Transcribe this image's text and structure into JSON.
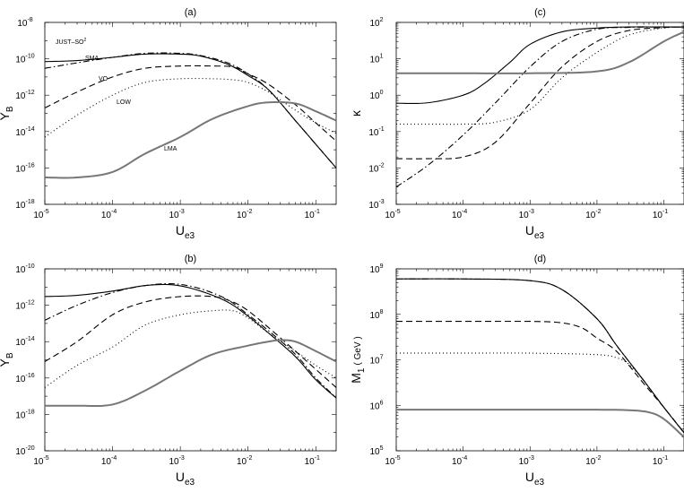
{
  "chart_data": [
    {
      "id": "a",
      "type": "line",
      "title": "(a)",
      "xlabel": "U",
      "xlabel_sub": "e3",
      "ylabel": "Y",
      "ylabel_sub": "B",
      "ylabel_extra": "",
      "xscale": "log",
      "yscale": "log",
      "xlim": [
        1e-05,
        0.2
      ],
      "ylim": [
        1e-18,
        1e-08
      ],
      "xticks": [
        1e-05,
        0.0001,
        0.001,
        0.01,
        0.1
      ],
      "xtick_labels": [
        [
          "10",
          "-5"
        ],
        [
          "10",
          "-4"
        ],
        [
          "10",
          "-3"
        ],
        [
          "10",
          "-2"
        ],
        [
          "10",
          "-1"
        ]
      ],
      "yticks": [
        1e-18,
        1e-16,
        1e-14,
        1e-12,
        1e-10,
        1e-08
      ],
      "ytick_labels": [
        [
          "10",
          "-18"
        ],
        [
          "10",
          "-16"
        ],
        [
          "10",
          "-14"
        ],
        [
          "10",
          "-12"
        ],
        [
          "10",
          "-10"
        ],
        [
          "10",
          "-8"
        ]
      ],
      "series": [
        {
          "name": "JUST-SO²",
          "style": "dashdot",
          "x": [
            1e-05,
            3e-05,
            0.0001,
            0.0003,
            0.001,
            0.002,
            0.005,
            0.01,
            0.02,
            0.05,
            0.1,
            0.2
          ],
          "y": [
            3e-11,
            6e-11,
            1.2e-10,
            2e-10,
            2e-10,
            1.5e-10,
            6e-11,
            1.5e-11,
            2e-12,
            4e-14,
            2e-15,
            1e-16
          ]
        },
        {
          "name": "SMA",
          "style": "solid",
          "x": [
            1e-05,
            3e-05,
            0.0001,
            0.0003,
            0.001,
            0.002,
            0.005,
            0.01,
            0.02,
            0.05,
            0.1,
            0.2
          ],
          "y": [
            7e-11,
            8e-11,
            1.2e-10,
            1.8e-10,
            1.8e-10,
            1.4e-10,
            5e-11,
            1.2e-11,
            2e-12,
            4e-14,
            2e-15,
            1e-16
          ]
        },
        {
          "name": "VO",
          "style": "dashed",
          "x": [
            1e-05,
            3e-05,
            0.0001,
            0.0003,
            0.001,
            0.003,
            0.006,
            0.01,
            0.02,
            0.05,
            0.1,
            0.2
          ],
          "y": [
            2e-13,
            1.5e-12,
            1e-11,
            3e-11,
            4e-11,
            4e-11,
            3.5e-11,
            1.5e-11,
            4e-12,
            3e-13,
            3e-14,
            3e-15
          ]
        },
        {
          "name": "LOW",
          "style": "dotted",
          "x": [
            1e-05,
            3e-05,
            0.0001,
            0.0003,
            0.001,
            0.003,
            0.006,
            0.01,
            0.02,
            0.05,
            0.1,
            0.2
          ],
          "y": [
            5e-15,
            8e-14,
            1e-12,
            5e-12,
            8e-12,
            8e-12,
            7e-12,
            5e-12,
            1.5e-12,
            1.5e-13,
            3e-14,
            8e-15
          ]
        },
        {
          "name": "LMA",
          "style": "gray",
          "x": [
            1e-05,
            3e-05,
            0.0001,
            0.0003,
            0.001,
            0.003,
            0.01,
            0.02,
            0.05,
            0.1,
            0.2
          ],
          "y": [
            3e-17,
            3e-17,
            6e-17,
            6e-16,
            5e-15,
            5e-14,
            2.5e-13,
            4e-13,
            3.5e-13,
            1.3e-13,
            4e-14
          ]
        }
      ],
      "annotations": [
        "JUST–SO",
        "SMA",
        "VO",
        "LOW",
        "LMA"
      ]
    },
    {
      "id": "b",
      "type": "line",
      "title": "(b)",
      "xlabel": "U",
      "xlabel_sub": "e3",
      "ylabel": "Y",
      "ylabel_sub": "B",
      "ylabel_extra": "",
      "xscale": "log",
      "yscale": "log",
      "xlim": [
        1e-05,
        0.2
      ],
      "ylim": [
        1e-20,
        1e-10
      ],
      "xticks": [
        1e-05,
        0.0001,
        0.001,
        0.01,
        0.1
      ],
      "xtick_labels": [
        [
          "10",
          "-5"
        ],
        [
          "10",
          "-4"
        ],
        [
          "10",
          "-3"
        ],
        [
          "10",
          "-2"
        ],
        [
          "10",
          "-1"
        ]
      ],
      "yticks": [
        1e-20,
        1e-18,
        1e-16,
        1e-14,
        1e-12,
        1e-10
      ],
      "ytick_labels": [
        [
          "10",
          "-20"
        ],
        [
          "10",
          "-18"
        ],
        [
          "10",
          "-16"
        ],
        [
          "10",
          "-14"
        ],
        [
          "10",
          "-12"
        ],
        [
          "10",
          "-10"
        ]
      ],
      "series": [
        {
          "name": "JUST-SO²",
          "style": "dashdot",
          "x": [
            1e-05,
            3e-05,
            0.0001,
            0.0003,
            0.0008,
            0.002,
            0.005,
            0.01,
            0.02,
            0.05,
            0.1,
            0.2
          ],
          "y": [
            1.5e-13,
            1e-12,
            5e-12,
            1.2e-11,
            1.5e-11,
            8e-12,
            2e-12,
            3e-13,
            4e-14,
            2e-15,
            1e-16,
            8e-18
          ]
        },
        {
          "name": "SMA",
          "style": "solid",
          "x": [
            1e-05,
            3e-05,
            0.0001,
            0.0003,
            0.0008,
            0.002,
            0.005,
            0.01,
            0.02,
            0.05,
            0.1,
            0.2
          ],
          "y": [
            3e-12,
            3.5e-12,
            6e-12,
            1.2e-11,
            1.3e-11,
            6e-12,
            1.5e-12,
            2.5e-13,
            3e-14,
            1.5e-15,
            8e-17,
            8e-18
          ]
        },
        {
          "name": "VO",
          "style": "dashed",
          "x": [
            1e-05,
            3e-05,
            0.0001,
            0.0003,
            0.001,
            0.003,
            0.006,
            0.01,
            0.02,
            0.05,
            0.1,
            0.2
          ],
          "y": [
            8e-16,
            1e-14,
            3e-13,
            1.5e-12,
            3e-12,
            3e-12,
            1.5e-12,
            5e-13,
            6e-14,
            3e-15,
            3e-16,
            3e-17
          ]
        },
        {
          "name": "LOW",
          "style": "dotted",
          "x": [
            1e-05,
            3e-05,
            0.0001,
            0.0003,
            0.001,
            0.003,
            0.006,
            0.01,
            0.02,
            0.05,
            0.1,
            0.2
          ],
          "y": [
            3e-17,
            5e-16,
            5e-15,
            8e-14,
            3e-13,
            5e-13,
            5e-13,
            2e-13,
            3e-14,
            3e-15,
            5e-16,
            1e-16
          ]
        },
        {
          "name": "LMA",
          "style": "gray",
          "x": [
            1e-05,
            3e-05,
            0.0001,
            0.0003,
            0.001,
            0.003,
            0.01,
            0.02,
            0.03,
            0.05,
            0.1,
            0.2
          ],
          "y": [
            3e-18,
            3e-18,
            3.5e-18,
            2e-17,
            2.5e-16,
            2e-15,
            6e-15,
            1e-14,
            1.2e-14,
            1e-14,
            3e-15,
            8e-16
          ]
        }
      ]
    },
    {
      "id": "c",
      "type": "line",
      "title": "(c)",
      "xlabel": "U",
      "xlabel_sub": "e3",
      "ylabel": "κ",
      "ylabel_sub": "",
      "ylabel_extra": "",
      "xscale": "log",
      "yscale": "log",
      "xlim": [
        1e-05,
        0.2
      ],
      "ylim": [
        0.001,
        100
      ],
      "xticks": [
        1e-05,
        0.0001,
        0.001,
        0.01,
        0.1
      ],
      "xtick_labels": [
        [
          "10",
          "-5"
        ],
        [
          "10",
          "-4"
        ],
        [
          "10",
          "-3"
        ],
        [
          "10",
          "-2"
        ],
        [
          "10",
          "-1"
        ]
      ],
      "yticks": [
        0.001,
        0.01,
        0.1,
        1,
        10,
        100
      ],
      "ytick_labels": [
        [
          "10",
          "-3"
        ],
        [
          "10",
          "-2"
        ],
        [
          "10",
          "-1"
        ],
        [
          "10",
          "0"
        ],
        [
          "10",
          "1"
        ],
        [
          "10",
          "2"
        ]
      ],
      "series": [
        {
          "name": "SMA",
          "style": "solid",
          "x": [
            1e-05,
            3e-05,
            0.0001,
            0.0002,
            0.0005,
            0.001,
            0.003,
            0.01,
            0.03,
            0.1,
            0.2
          ],
          "y": [
            0.6,
            0.62,
            1,
            2,
            8,
            25,
            55,
            70,
            75,
            75,
            75
          ]
        },
        {
          "name": "JUST-SO²",
          "style": "dashdot",
          "x": [
            1e-05,
            3e-05,
            0.0001,
            0.0003,
            0.001,
            0.003,
            0.01,
            0.03,
            0.1,
            0.2
          ],
          "y": [
            0.003,
            0.012,
            0.08,
            0.6,
            6,
            30,
            65,
            73,
            75,
            75
          ]
        },
        {
          "name": "VO",
          "style": "dashed",
          "x": [
            1e-05,
            3e-05,
            0.0001,
            0.0003,
            0.001,
            0.003,
            0.01,
            0.03,
            0.1,
            0.2
          ],
          "y": [
            0.018,
            0.018,
            0.02,
            0.05,
            0.6,
            6,
            30,
            60,
            72,
            75
          ]
        },
        {
          "name": "LOW",
          "style": "dotted",
          "x": [
            1e-05,
            3e-05,
            0.0001,
            0.0003,
            0.001,
            0.003,
            0.01,
            0.03,
            0.1,
            0.2
          ],
          "y": [
            0.16,
            0.16,
            0.16,
            0.18,
            0.4,
            3,
            15,
            45,
            70,
            75
          ]
        },
        {
          "name": "LMA",
          "style": "gray",
          "x": [
            1e-05,
            0.0001,
            0.001,
            0.01,
            0.03,
            0.1,
            0.2
          ],
          "y": [
            4,
            4,
            4,
            4.5,
            8,
            30,
            55
          ]
        }
      ]
    },
    {
      "id": "d",
      "type": "line",
      "title": "(d)",
      "xlabel": "U",
      "xlabel_sub": "e3",
      "ylabel": "M",
      "ylabel_sub": "1",
      "ylabel_extra": "( GeV )",
      "xscale": "log",
      "yscale": "log",
      "xlim": [
        1e-05,
        0.2
      ],
      "ylim": [
        100000.0,
        1000000000.0
      ],
      "xticks": [
        1e-05,
        0.0001,
        0.001,
        0.01,
        0.1
      ],
      "xtick_labels": [
        [
          "10",
          "-5"
        ],
        [
          "10",
          "-4"
        ],
        [
          "10",
          "-3"
        ],
        [
          "10",
          "-2"
        ],
        [
          "10",
          "-1"
        ]
      ],
      "yticks": [
        100000.0,
        1000000.0,
        10000000.0,
        100000000.0,
        1000000000.0
      ],
      "ytick_labels": [
        [
          "10",
          "5"
        ],
        [
          "10",
          "6"
        ],
        [
          "10",
          "7"
        ],
        [
          "10",
          "8"
        ],
        [
          "10",
          "9"
        ]
      ],
      "series": [
        {
          "name": "SMA",
          "style": "solid",
          "x": [
            1e-05,
            0.0001,
            0.001,
            0.003,
            0.01,
            0.02,
            0.05,
            0.1,
            0.2
          ],
          "y": [
            600000000.0,
            600000000.0,
            550000000.0,
            350000000.0,
            80000000.0,
            20000000.0,
            3500000.0,
            900000.0,
            250000.0
          ]
        },
        {
          "name": "JUST-SO²",
          "style": "dashdot",
          "x": [
            1e-05,
            0.0001,
            0.001,
            0.003,
            0.01,
            0.02,
            0.05,
            0.1,
            0.2
          ],
          "y": [
            600000000.0,
            600000000.0,
            550000000.0,
            350000000.0,
            80000000.0,
            20000000.0,
            3500000.0,
            900000.0,
            250000.0
          ]
        },
        {
          "name": "VO",
          "style": "dashed",
          "x": [
            1e-05,
            0.0001,
            0.001,
            0.003,
            0.006,
            0.01,
            0.02,
            0.05,
            0.1,
            0.2
          ],
          "y": [
            70000000.0,
            70000000.0,
            70000000.0,
            65000000.0,
            50000000.0,
            30000000.0,
            15000000.0,
            3000000.0,
            900000.0,
            250000.0
          ]
        },
        {
          "name": "LOW",
          "style": "dotted",
          "x": [
            1e-05,
            0.0001,
            0.001,
            0.01,
            0.02,
            0.03,
            0.05,
            0.1,
            0.2
          ],
          "y": [
            14000000.0,
            14000000.0,
            14000000.0,
            13000000.0,
            11000000.0,
            8000000.0,
            3500000.0,
            900000.0,
            250000.0
          ]
        },
        {
          "name": "LMA",
          "style": "gray",
          "x": [
            1e-05,
            0.0001,
            0.001,
            0.01,
            0.03,
            0.06,
            0.1,
            0.2
          ],
          "y": [
            800000.0,
            800000.0,
            800000.0,
            800000.0,
            780000.0,
            700000.0,
            500000.0,
            200000.0
          ]
        }
      ]
    }
  ]
}
